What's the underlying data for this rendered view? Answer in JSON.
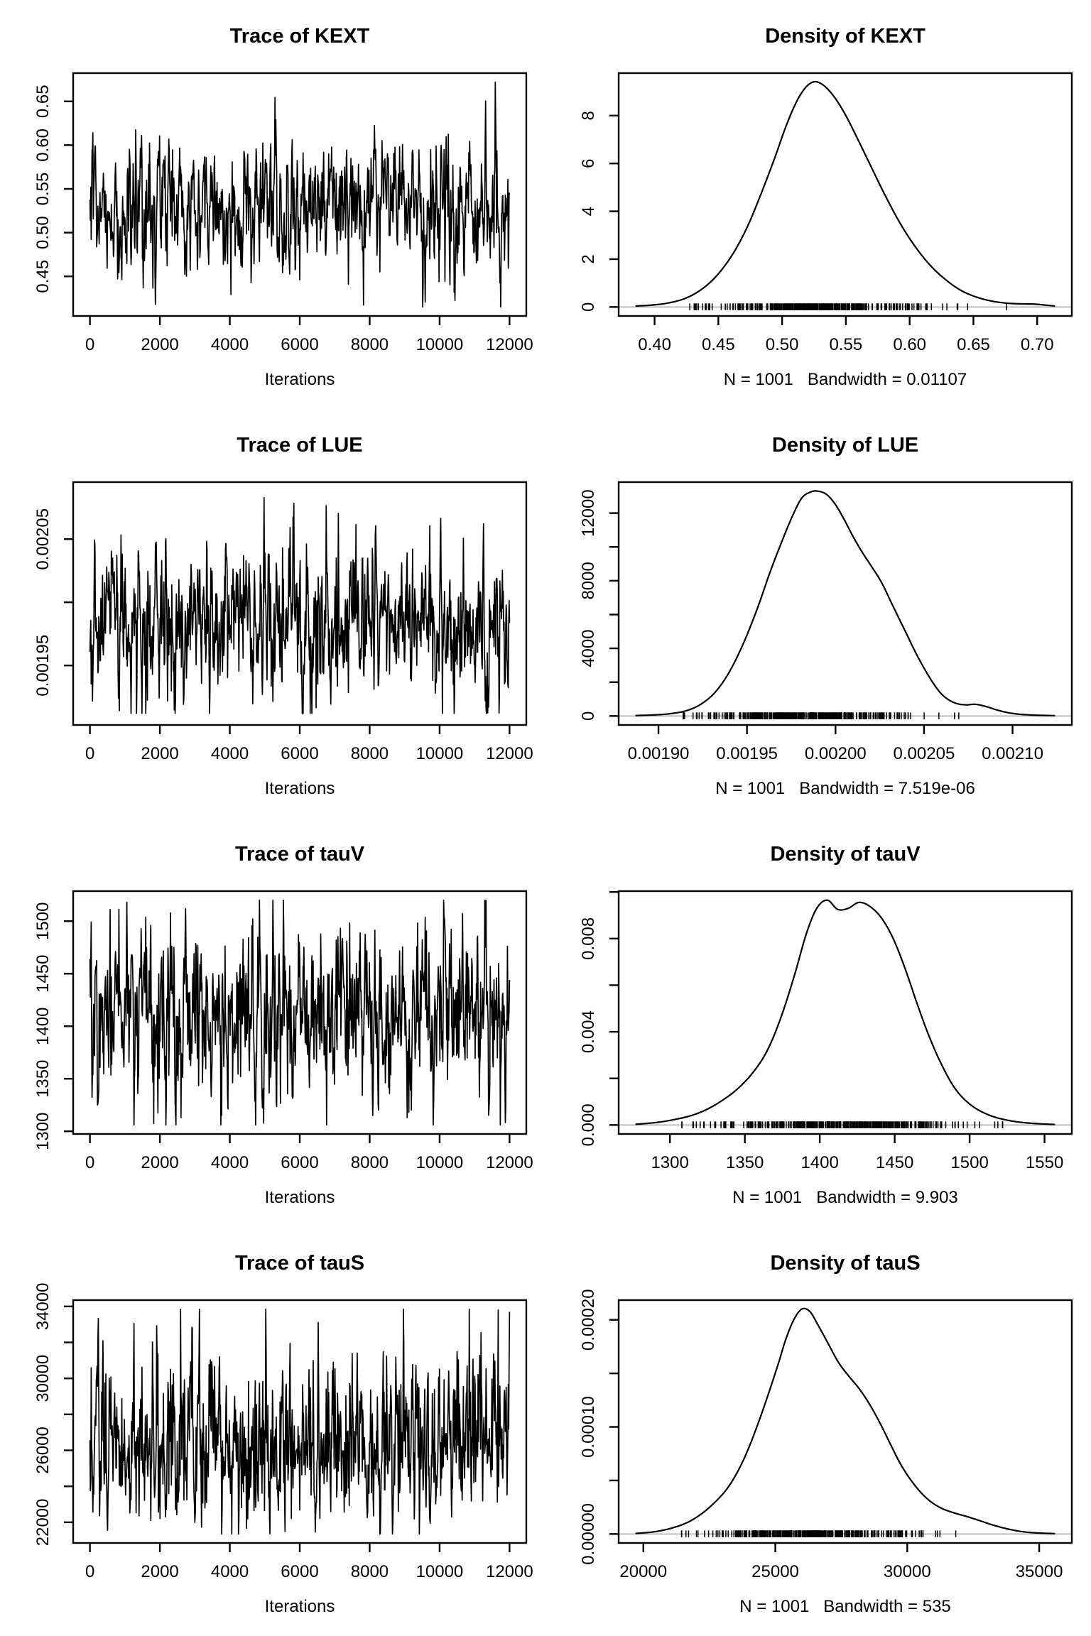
{
  "figure": {
    "description": "MCMC trace and density diagnostic plots for parameters KEXT, LUE, tauV, tauS",
    "colors": {
      "line": "#000000",
      "zero_line": "#bfbfbf",
      "background": "#ffffff"
    }
  },
  "chart_data": [
    {
      "id": "trace-KEXT",
      "type": "line",
      "title": "Trace of KEXT",
      "xlabel": "Iterations",
      "xlim": [
        0,
        12000
      ],
      "ylim": [
        0.415,
        0.672
      ],
      "xticks": {
        "values": [
          0,
          2000,
          4000,
          6000,
          8000,
          10000,
          12000
        ],
        "labels": [
          "0",
          "2000",
          "4000",
          "6000",
          "8000",
          "10000",
          "12000"
        ]
      },
      "yticks": {
        "values": [
          0.45,
          0.5,
          0.55,
          0.6,
          0.65
        ],
        "labels": [
          "0.45",
          "0.50",
          "0.55",
          "0.60",
          "0.65"
        ]
      },
      "trace": {
        "n": 1001,
        "mean": 0.532,
        "sd": 0.037,
        "phi": 0.58,
        "seed": 101,
        "clip": [
          0.415,
          0.672
        ],
        "skew": [
          1,
          1
        ]
      }
    },
    {
      "id": "density-KEXT",
      "type": "density",
      "title": "Density of KEXT",
      "xlabel": "N = 1001   Bandwidth = 0.01107",
      "stats": {
        "n": 1001,
        "bandwidth": "0.01107"
      },
      "xlim": [
        0.385,
        0.714
      ],
      "ylim": [
        0,
        9.4
      ],
      "xticks": {
        "values": [
          0.4,
          0.45,
          0.5,
          0.55,
          0.6,
          0.65,
          0.7
        ],
        "labels": [
          "0.40",
          "0.45",
          "0.50",
          "0.55",
          "0.60",
          "0.65",
          "0.70"
        ]
      },
      "yticks": {
        "values": [
          0,
          2,
          4,
          6,
          8
        ],
        "labels": [
          "0",
          "2",
          "4",
          "6",
          "8"
        ]
      },
      "curve": {
        "x": [
          0.385,
          0.398,
          0.41,
          0.422,
          0.433,
          0.444,
          0.454,
          0.464,
          0.474,
          0.484,
          0.494,
          0.503,
          0.511,
          0.518,
          0.524,
          0.529,
          0.535,
          0.542,
          0.55,
          0.559,
          0.569,
          0.58,
          0.592,
          0.604,
          0.616,
          0.628,
          0.64,
          0.652,
          0.664,
          0.676,
          0.688,
          0.698,
          0.706,
          0.714
        ],
        "y": [
          0.04,
          0.08,
          0.16,
          0.32,
          0.6,
          1.05,
          1.65,
          2.45,
          3.5,
          4.8,
          6.2,
          7.55,
          8.55,
          9.15,
          9.4,
          9.38,
          9.15,
          8.7,
          8.0,
          7.05,
          5.95,
          4.75,
          3.55,
          2.55,
          1.75,
          1.15,
          0.7,
          0.42,
          0.25,
          0.16,
          0.13,
          0.12,
          0.08,
          0.04
        ]
      },
      "rug": {
        "n": 380,
        "mean": 0.53,
        "sd": 0.04,
        "clip": [
          0.417,
          0.676
        ],
        "seed": 201
      }
    },
    {
      "id": "trace-LUE",
      "type": "line",
      "title": "Trace of LUE",
      "xlabel": "Iterations",
      "xlim": [
        0,
        12000
      ],
      "ylim": [
        0.00191,
        0.002088
      ],
      "xticks": {
        "values": [
          0,
          2000,
          4000,
          6000,
          8000,
          10000,
          12000
        ],
        "labels": [
          "0",
          "2000",
          "4000",
          "6000",
          "8000",
          "10000",
          "12000"
        ]
      },
      "yticks": {
        "values": [
          0.00195,
          0.002,
          0.00205
        ],
        "labels": [
          "0.00195",
          "",
          "0.00205"
        ]
      },
      "trace": {
        "n": 1001,
        "mean": 0.001982,
        "sd": 2.95e-05,
        "phi": 0.5,
        "seed": 102,
        "clip": [
          0.001912,
          0.002088
        ],
        "skew": [
          1,
          1
        ]
      }
    },
    {
      "id": "density-LUE",
      "type": "density",
      "title": "Density of LUE",
      "xlabel": "N = 1001   Bandwidth = 7.519e-06",
      "stats": {
        "n": 1001,
        "bandwidth": "7.519e-06"
      },
      "xlim": [
        0.001887,
        0.002124
      ],
      "ylim": [
        0,
        13300
      ],
      "xticks": {
        "values": [
          0.0019,
          0.00195,
          0.002,
          0.00205,
          0.0021
        ],
        "labels": [
          "0.00190",
          "0.00195",
          "0.00200",
          "0.00205",
          "0.00210"
        ]
      },
      "yticks": {
        "values": [
          0,
          2000,
          4000,
          6000,
          8000,
          10000,
          12000
        ],
        "labels": [
          "0",
          "",
          "4000",
          "",
          "8000",
          "",
          "12000"
        ]
      },
      "curve": {
        "x": [
          0.001887,
          0.001897,
          0.001907,
          0.001916,
          0.001924,
          0.001932,
          0.00194,
          0.001948,
          0.001956,
          0.001963,
          0.00197,
          0.001976,
          0.001981,
          0.001986,
          0.00199,
          0.001995,
          0.002,
          0.002005,
          0.00201,
          0.002015,
          0.00202,
          0.002026,
          0.002032,
          0.002039,
          0.002046,
          0.002053,
          0.002059,
          0.002064,
          0.002069,
          0.002074,
          0.002079,
          0.002085,
          0.002092,
          0.0021,
          0.00211,
          0.002124
        ],
        "y": [
          25,
          60,
          140,
          320,
          700,
          1400,
          2600,
          4300,
          6400,
          8500,
          10400,
          11900,
          12900,
          13250,
          13300,
          13100,
          12500,
          11600,
          10600,
          9700,
          8900,
          7900,
          6600,
          5100,
          3600,
          2300,
          1400,
          950,
          720,
          660,
          690,
          560,
          330,
          150,
          60,
          20
        ]
      },
      "rug": {
        "n": 380,
        "mean": 0.00198,
        "sd": 2.9e-05,
        "clip": [
          0.001914,
          0.002086
        ],
        "seed": 202
      }
    },
    {
      "id": "trace-tauV",
      "type": "line",
      "title": "Trace of tauV",
      "xlabel": "Iterations",
      "xlim": [
        0,
        12000
      ],
      "ylim": [
        1306,
        1520
      ],
      "xticks": {
        "values": [
          0,
          2000,
          4000,
          6000,
          8000,
          10000,
          12000
        ],
        "labels": [
          "0",
          "2000",
          "4000",
          "6000",
          "8000",
          "10000",
          "12000"
        ]
      },
      "yticks": {
        "values": [
          1300,
          1350,
          1400,
          1450,
          1500
        ],
        "labels": [
          "1300",
          "1350",
          "1400",
          "1450",
          "1500"
        ]
      },
      "trace": {
        "n": 1001,
        "mean": 1412,
        "sd": 39,
        "phi": 0.45,
        "seed": 103,
        "clip": [
          1306,
          1520
        ],
        "skew": [
          1,
          1
        ]
      }
    },
    {
      "id": "density-tauV",
      "type": "density",
      "title": "Density of tauV",
      "xlabel": "N = 1001   Bandwidth = 9.903",
      "stats": {
        "n": 1001,
        "bandwidth": "9.903"
      },
      "xlim": [
        1277,
        1557
      ],
      "ylim": [
        0,
        0.00965
      ],
      "xticks": {
        "values": [
          1300,
          1350,
          1400,
          1450,
          1500,
          1550
        ],
        "labels": [
          "1300",
          "1350",
          "1400",
          "1450",
          "1500",
          "1550"
        ]
      },
      "yticks": {
        "values": [
          0,
          0.002,
          0.004,
          0.006,
          0.008,
          0.01
        ],
        "labels": [
          "0.000",
          "",
          "0.004",
          "",
          "0.008",
          ""
        ]
      },
      "curve": {
        "x": [
          1277,
          1290,
          1302,
          1314,
          1325,
          1336,
          1346,
          1356,
          1365,
          1374,
          1383,
          1391,
          1398,
          1405,
          1412,
          1419,
          1426,
          1433,
          1441,
          1449,
          1457,
          1465,
          1473,
          1482,
          1491,
          1501,
          1512,
          1524,
          1538,
          1557
        ],
        "y": [
          3e-05,
          0.0001,
          0.00022,
          0.0004,
          0.00068,
          0.0011,
          0.0016,
          0.0023,
          0.0032,
          0.0046,
          0.0064,
          0.0082,
          0.0093,
          0.00965,
          0.00925,
          0.0093,
          0.00955,
          0.0094,
          0.0089,
          0.008,
          0.0067,
          0.0052,
          0.0038,
          0.0025,
          0.0015,
          0.00085,
          0.00045,
          0.00022,
          9e-05,
          2e-05
        ]
      },
      "rug": {
        "n": 380,
        "mean": 1412,
        "sd": 40,
        "clip": [
          1308,
          1522
        ],
        "seed": 203
      }
    },
    {
      "id": "trace-tauS",
      "type": "line",
      "title": "Trace of tauS",
      "xlabel": "Iterations",
      "xlim": [
        0,
        12000
      ],
      "ylim": [
        21350,
        33850
      ],
      "xticks": {
        "values": [
          0,
          2000,
          4000,
          6000,
          8000,
          10000,
          12000
        ],
        "labels": [
          "0",
          "2000",
          "4000",
          "6000",
          "8000",
          "10000",
          "12000"
        ]
      },
      "yticks": {
        "values": [
          22000,
          24000,
          26000,
          28000,
          30000,
          32000,
          34000
        ],
        "labels": [
          "22000",
          "",
          "26000",
          "",
          "30000",
          "",
          "34000"
        ]
      },
      "trace": {
        "n": 1001,
        "mean": 26300,
        "sd": 2150,
        "phi": 0.42,
        "seed": 104,
        "clip": [
          21350,
          33850
        ],
        "skew": [
          0.85,
          1.2
        ]
      }
    },
    {
      "id": "density-tauS",
      "type": "density",
      "title": "Density of tauS",
      "xlabel": "N = 1001   Bandwidth = 535",
      "stats": {
        "n": 1001,
        "bandwidth": "535"
      },
      "xlim": [
        19700,
        35600
      ],
      "ylim": [
        0,
        0.00021
      ],
      "xticks": {
        "values": [
          20000,
          25000,
          30000,
          35000
        ],
        "labels": [
          "20000",
          "25000",
          "30000",
          "35000"
        ]
      },
      "yticks": {
        "values": [
          0,
          5e-05,
          0.0001,
          0.00015,
          0.0002
        ],
        "labels": [
          "0.00000",
          "",
          "0.00010",
          "",
          "0.00020"
        ]
      },
      "curve": {
        "x": [
          19700,
          20400,
          21000,
          21600,
          22100,
          22600,
          23100,
          23500,
          23900,
          24300,
          24700,
          25100,
          25400,
          25700,
          26000,
          26300,
          26600,
          27000,
          27400,
          27800,
          28200,
          28600,
          29000,
          29400,
          29800,
          30300,
          30800,
          31300,
          31800,
          32300,
          32800,
          33300,
          33900,
          34600,
          35600
        ],
        "y": [
          5e-07,
          2e-06,
          5e-06,
          1e-05,
          1.7e-05,
          2.7e-05,
          4e-05,
          5.5e-05,
          7.5e-05,
          0.0001,
          0.000128,
          0.000158,
          0.000182,
          0.0002,
          0.00021,
          0.000208,
          0.000196,
          0.000178,
          0.00016,
          0.000147,
          0.000135,
          0.00012,
          0.000102,
          8.2e-05,
          6.3e-05,
          4.5e-05,
          3.2e-05,
          2.4e-05,
          1.95e-05,
          1.6e-05,
          1.2e-05,
          8e-06,
          4.2e-06,
          1.5e-06,
          3e-07
        ]
      },
      "rug": {
        "n": 380,
        "mean": 26300,
        "sd": 2100,
        "clip": [
          21450,
          33700
        ],
        "seed": 204
      }
    }
  ]
}
